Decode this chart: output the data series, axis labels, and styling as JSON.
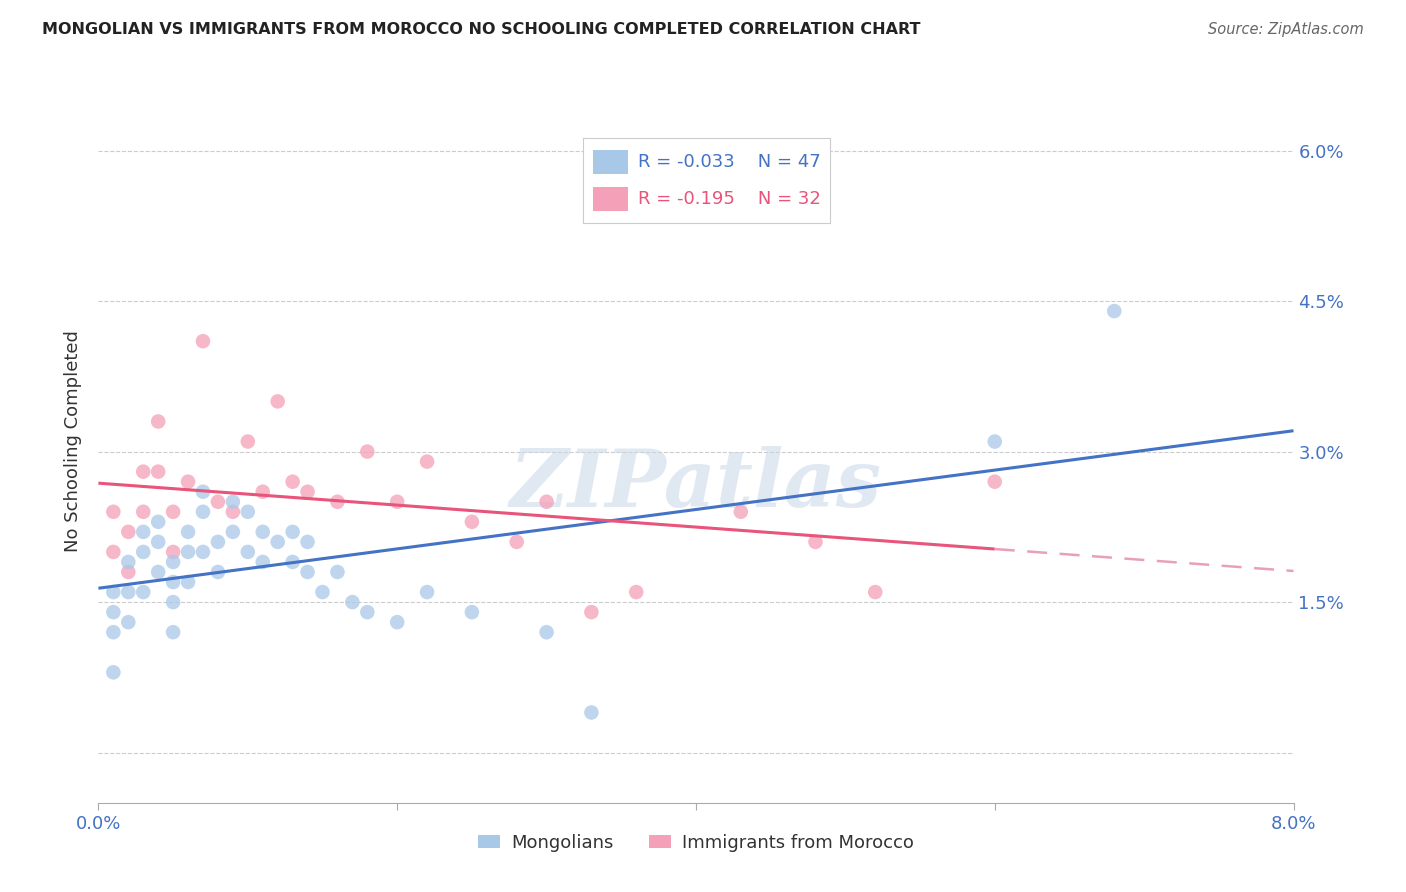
{
  "title": "MONGOLIAN VS IMMIGRANTS FROM MOROCCO NO SCHOOLING COMPLETED CORRELATION CHART",
  "source": "Source: ZipAtlas.com",
  "ylabel": "No Schooling Completed",
  "right_yticks": [
    0.0,
    0.015,
    0.03,
    0.045,
    0.06
  ],
  "right_yticklabels": [
    "",
    "1.5%",
    "3.0%",
    "4.5%",
    "6.0%"
  ],
  "x_range": [
    0.0,
    0.08
  ],
  "y_range": [
    -0.005,
    0.067
  ],
  "mongolian_R": -0.033,
  "mongolian_N": 47,
  "morocco_R": -0.195,
  "morocco_N": 32,
  "mongolian_color": "#a8c8e8",
  "morocco_color": "#f4a0b8",
  "mongolian_line_color": "#4472c4",
  "morocco_line_color": "#e8547a",
  "morocco_dash_color": "#e8a0b8",
  "mongolian_x": [
    0.001,
    0.001,
    0.001,
    0.001,
    0.002,
    0.002,
    0.002,
    0.003,
    0.003,
    0.003,
    0.004,
    0.004,
    0.004,
    0.005,
    0.005,
    0.005,
    0.005,
    0.006,
    0.006,
    0.006,
    0.007,
    0.007,
    0.007,
    0.008,
    0.008,
    0.009,
    0.009,
    0.01,
    0.01,
    0.011,
    0.011,
    0.012,
    0.013,
    0.013,
    0.014,
    0.014,
    0.015,
    0.016,
    0.017,
    0.018,
    0.02,
    0.022,
    0.025,
    0.03,
    0.033,
    0.06,
    0.068
  ],
  "mongolian_y": [
    0.016,
    0.014,
    0.012,
    0.008,
    0.019,
    0.016,
    0.013,
    0.022,
    0.02,
    0.016,
    0.023,
    0.021,
    0.018,
    0.019,
    0.017,
    0.015,
    0.012,
    0.022,
    0.02,
    0.017,
    0.026,
    0.024,
    0.02,
    0.021,
    0.018,
    0.025,
    0.022,
    0.024,
    0.02,
    0.022,
    0.019,
    0.021,
    0.022,
    0.019,
    0.021,
    0.018,
    0.016,
    0.018,
    0.015,
    0.014,
    0.013,
    0.016,
    0.014,
    0.012,
    0.004,
    0.031,
    0.044
  ],
  "morocco_x": [
    0.001,
    0.001,
    0.002,
    0.002,
    0.003,
    0.003,
    0.004,
    0.004,
    0.005,
    0.005,
    0.006,
    0.007,
    0.008,
    0.009,
    0.01,
    0.011,
    0.012,
    0.013,
    0.014,
    0.016,
    0.018,
    0.02,
    0.022,
    0.025,
    0.028,
    0.03,
    0.033,
    0.036,
    0.043,
    0.048,
    0.052,
    0.06
  ],
  "morocco_y": [
    0.024,
    0.02,
    0.022,
    0.018,
    0.028,
    0.024,
    0.033,
    0.028,
    0.024,
    0.02,
    0.027,
    0.041,
    0.025,
    0.024,
    0.031,
    0.026,
    0.035,
    0.027,
    0.026,
    0.025,
    0.03,
    0.025,
    0.029,
    0.023,
    0.021,
    0.025,
    0.014,
    0.016,
    0.024,
    0.021,
    0.016,
    0.027
  ],
  "watermark_text": "ZIPatlas",
  "watermark_color": "#c8d8e8",
  "background_color": "#ffffff",
  "grid_color": "#cccccc",
  "tick_color": "#4472c4",
  "title_color": "#222222"
}
